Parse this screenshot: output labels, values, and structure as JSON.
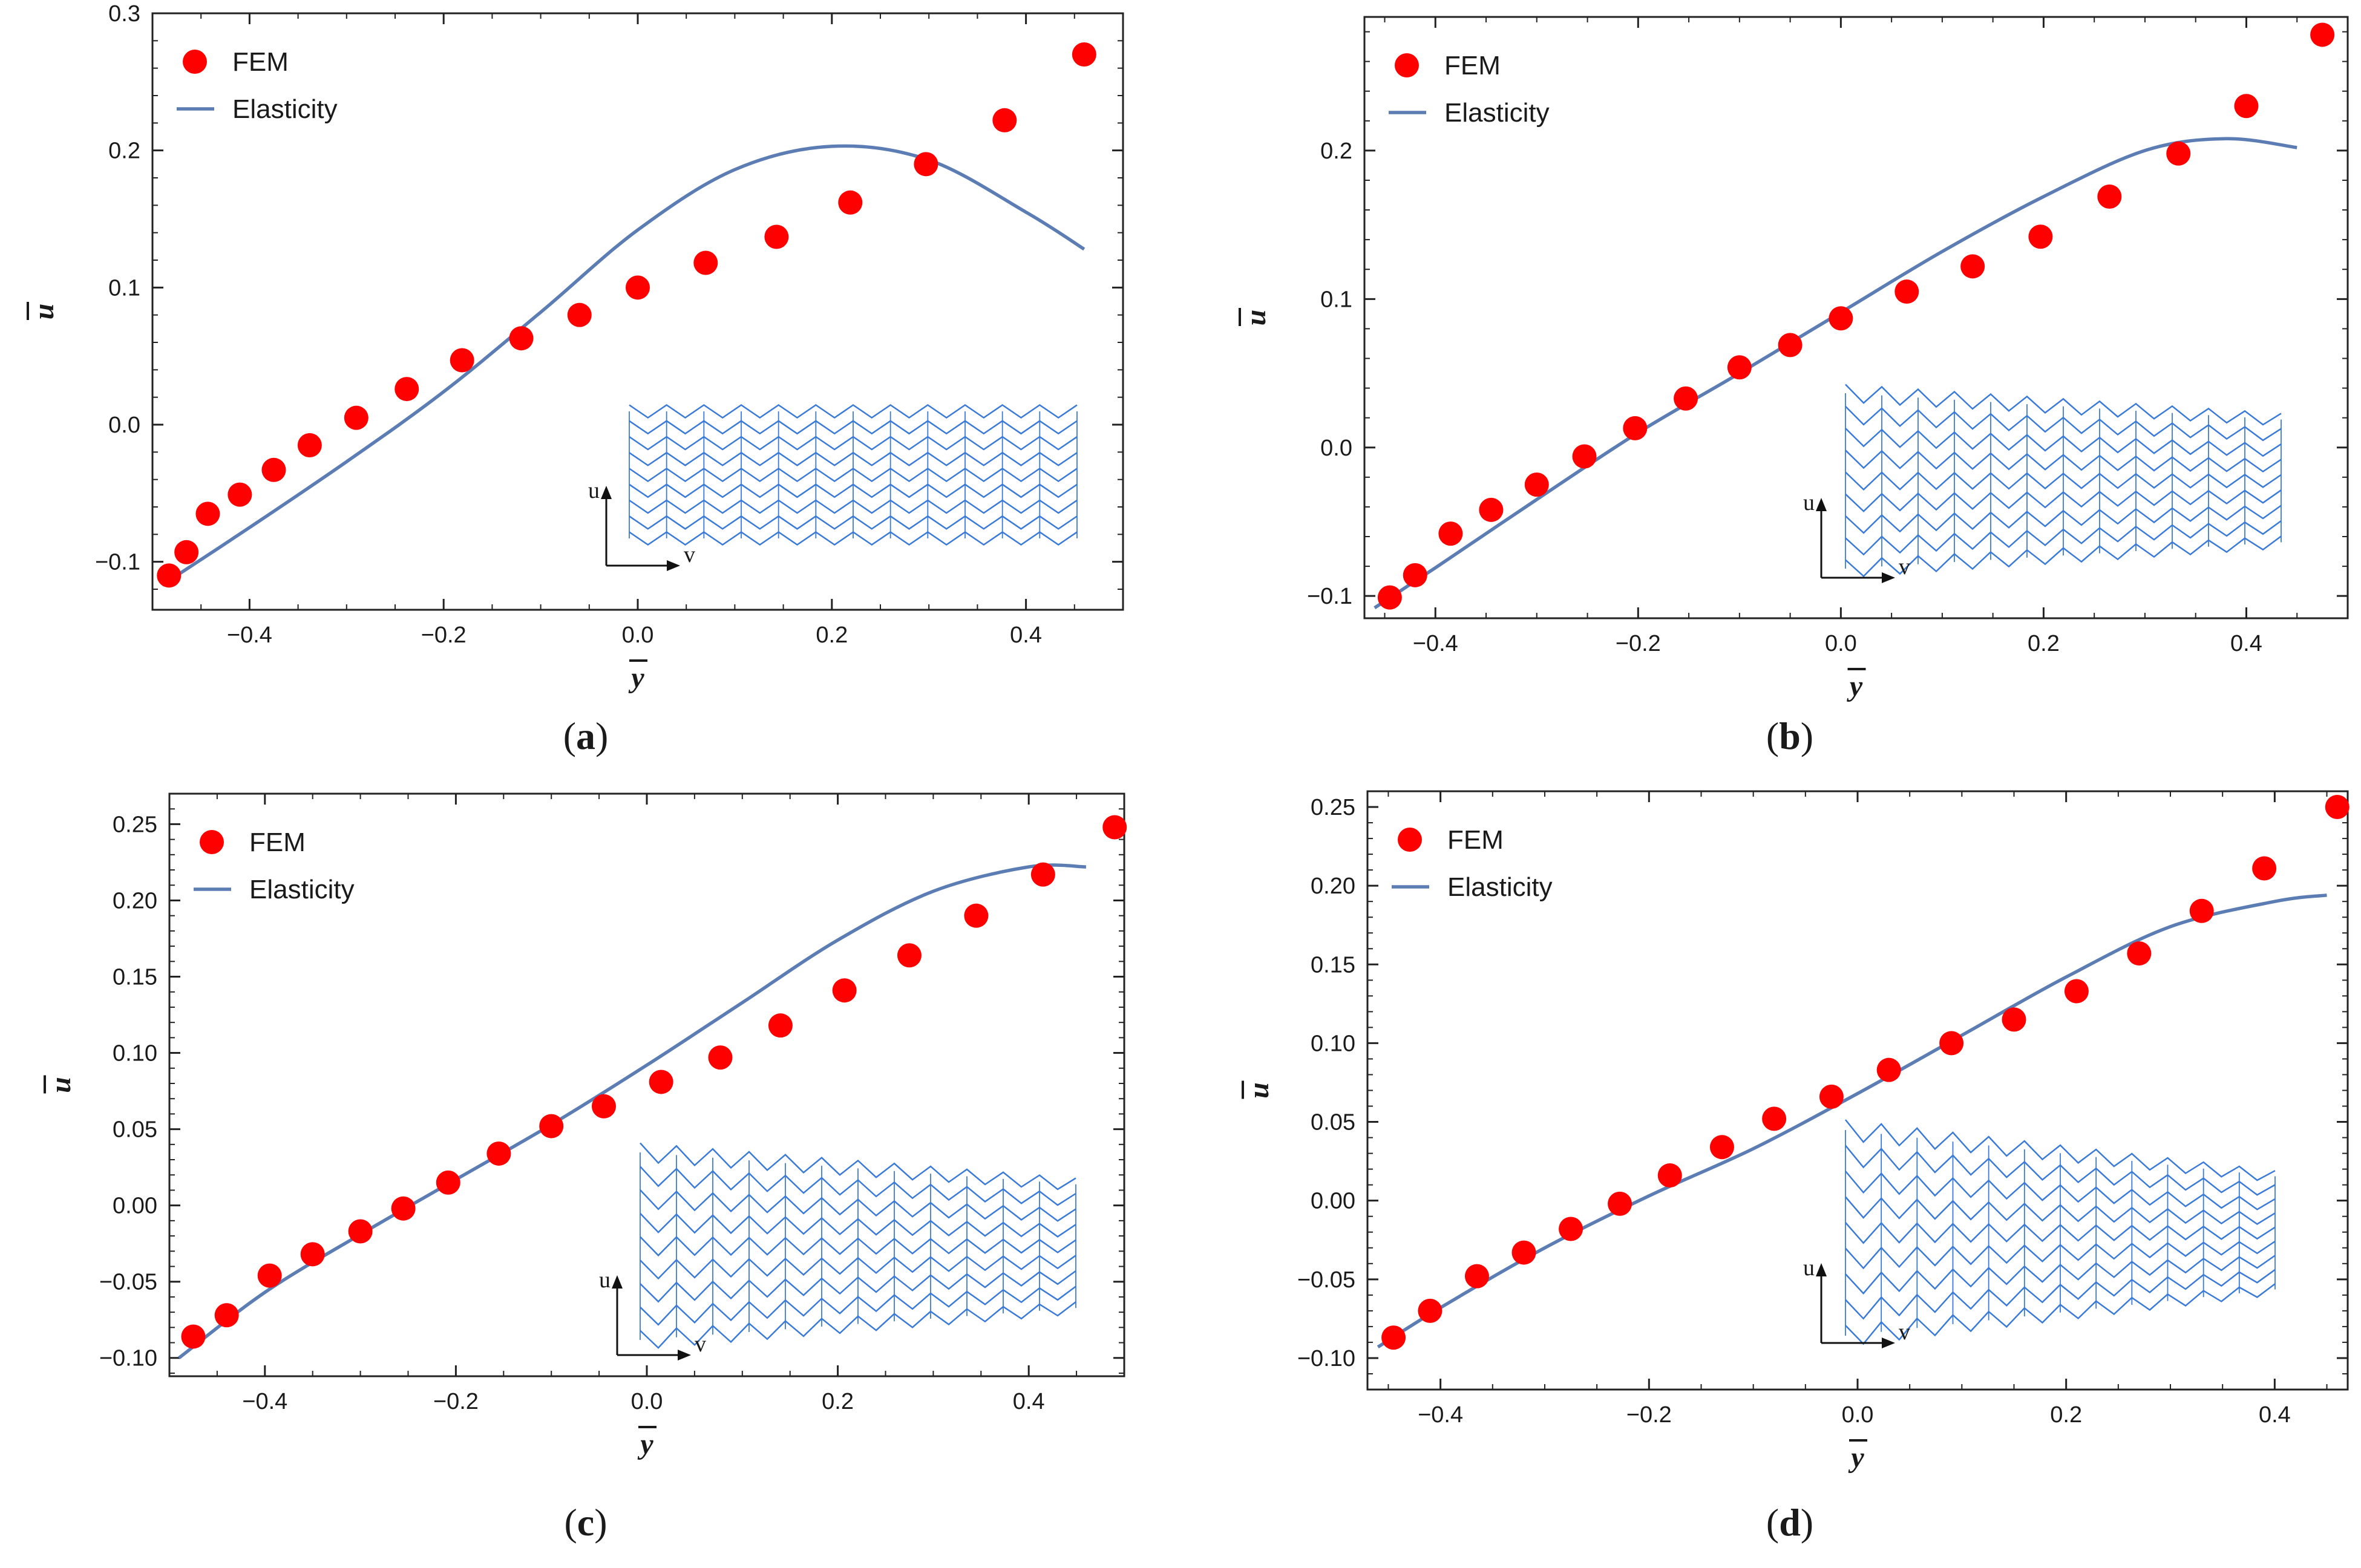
{
  "chart_data": [
    {
      "type": "scatter+line",
      "caption": "(a)",
      "xlabel": "y",
      "ylabel": "u",
      "xlim": [
        -0.5,
        0.5
      ],
      "ylim": [
        -0.135,
        0.3
      ],
      "xticks": [
        -0.4,
        -0.2,
        0.0,
        0.2,
        0.4
      ],
      "xtick_labels": [
        "−0.4",
        "−0.2",
        "0.0",
        "0.2",
        "0.4"
      ],
      "yticks": [
        -0.1,
        0.0,
        0.1,
        0.2,
        0.3
      ],
      "ytick_labels": [
        "−0.1",
        "0.0",
        "0.1",
        "0.2",
        "0.3"
      ],
      "legend": [
        "FEM",
        "Elasticity"
      ],
      "series": [
        {
          "name": "FEM",
          "kind": "scatter",
          "color": "#ff0000",
          "x": [
            -0.483,
            -0.465,
            -0.443,
            -0.41,
            -0.375,
            -0.338,
            -0.29,
            -0.238,
            -0.181,
            -0.12,
            -0.06,
            0.0,
            0.07,
            0.143,
            0.219,
            0.297,
            0.378,
            0.46
          ],
          "y": [
            -0.11,
            -0.093,
            -0.065,
            -0.051,
            -0.033,
            -0.015,
            0.005,
            0.026,
            0.047,
            0.063,
            0.08,
            0.1,
            0.118,
            0.137,
            0.162,
            0.19,
            0.222,
            0.27
          ]
        },
        {
          "name": "Elasticity",
          "kind": "line",
          "color": "#5b7db4",
          "x": [
            -0.49,
            -0.4,
            -0.3,
            -0.2,
            -0.1,
            0.0,
            0.1,
            0.2,
            0.3,
            0.4,
            0.46
          ],
          "y": [
            -0.117,
            -0.075,
            -0.027,
            0.024,
            0.082,
            0.142,
            0.186,
            0.203,
            0.193,
            0.155,
            0.128
          ]
        }
      ],
      "inset": {
        "axis_labels": [
          "u",
          "v"
        ]
      }
    },
    {
      "type": "scatter+line",
      "caption": "(b)",
      "xlabel": "y",
      "ylabel": "u",
      "xlim": [
        -0.47,
        0.5
      ],
      "ylim": [
        -0.115,
        0.29
      ],
      "xticks": [
        -0.4,
        -0.2,
        0.0,
        0.2,
        0.4
      ],
      "xtick_labels": [
        "−0.4",
        "−0.2",
        "0.0",
        "0.2",
        "0.4"
      ],
      "yticks": [
        -0.1,
        0.0,
        0.1,
        0.2
      ],
      "ytick_labels": [
        "−0.1",
        "0.0",
        "0.1",
        "0.2"
      ],
      "legend": [
        "FEM",
        "Elasticity"
      ],
      "series": [
        {
          "name": "FEM",
          "kind": "scatter",
          "color": "#ff0000",
          "x": [
            -0.445,
            -0.42,
            -0.385,
            -0.345,
            -0.3,
            -0.253,
            -0.203,
            -0.153,
            -0.1,
            -0.05,
            0.0,
            0.065,
            0.13,
            0.197,
            0.265,
            0.333,
            0.4,
            0.475
          ],
          "y": [
            -0.101,
            -0.086,
            -0.058,
            -0.042,
            -0.025,
            -0.006,
            0.013,
            0.033,
            0.054,
            0.069,
            0.087,
            0.105,
            0.122,
            0.142,
            0.169,
            0.198,
            0.23,
            0.278
          ]
        },
        {
          "name": "Elasticity",
          "kind": "line",
          "color": "#5b7db4",
          "x": [
            -0.46,
            -0.4,
            -0.3,
            -0.2,
            -0.1,
            0.0,
            0.1,
            0.2,
            0.3,
            0.38,
            0.45
          ],
          "y": [
            -0.108,
            -0.081,
            -0.035,
            0.01,
            0.05,
            0.091,
            0.132,
            0.169,
            0.2,
            0.208,
            0.202
          ]
        }
      ],
      "inset": {
        "axis_labels": [
          "u",
          "v"
        ]
      }
    },
    {
      "type": "scatter+line",
      "caption": "(c)",
      "xlabel": "y",
      "ylabel": "u",
      "xlim": [
        -0.5,
        0.5
      ],
      "ylim": [
        -0.112,
        0.27
      ],
      "xticks": [
        -0.4,
        -0.2,
        0.0,
        0.2,
        0.4
      ],
      "xtick_labels": [
        "−0.4",
        "−0.2",
        "0.0",
        "0.2",
        "0.4"
      ],
      "yticks": [
        -0.1,
        -0.05,
        0.0,
        0.05,
        0.1,
        0.15,
        0.2,
        0.25
      ],
      "ytick_labels": [
        "−0.10",
        "−0.05",
        "0.00",
        "0.05",
        "0.10",
        "0.15",
        "0.20",
        "0.25"
      ],
      "legend": [
        "FEM",
        "Elasticity"
      ],
      "series": [
        {
          "name": "FEM",
          "kind": "scatter",
          "color": "#ff0000",
          "x": [
            -0.475,
            -0.44,
            -0.395,
            -0.35,
            -0.3,
            -0.255,
            -0.208,
            -0.155,
            -0.1,
            -0.045,
            0.015,
            0.077,
            0.14,
            0.207,
            0.275,
            0.345,
            0.415,
            0.49
          ],
          "y": [
            -0.086,
            -0.072,
            -0.046,
            -0.032,
            -0.017,
            -0.002,
            0.015,
            0.034,
            0.052,
            0.065,
            0.081,
            0.097,
            0.118,
            0.141,
            0.164,
            0.19,
            0.217,
            0.248
          ]
        },
        {
          "name": "Elasticity",
          "kind": "line",
          "color": "#5b7db4",
          "x": [
            -0.49,
            -0.4,
            -0.3,
            -0.2,
            -0.1,
            0.0,
            0.1,
            0.2,
            0.3,
            0.4,
            0.46
          ],
          "y": [
            -0.1,
            -0.057,
            -0.019,
            0.017,
            0.053,
            0.092,
            0.133,
            0.174,
            0.206,
            0.222,
            0.222
          ]
        }
      ],
      "inset": {
        "axis_labels": [
          "u",
          "v"
        ]
      }
    },
    {
      "type": "scatter+line",
      "caption": "(d)",
      "xlabel": "y",
      "ylabel": "u",
      "xlim": [
        -0.47,
        0.47
      ],
      "ylim": [
        -0.12,
        0.26
      ],
      "xticks": [
        -0.4,
        -0.2,
        0.0,
        0.2,
        0.4
      ],
      "xtick_labels": [
        "−0.4",
        "−0.2",
        "0.0",
        "0.2",
        "0.4"
      ],
      "yticks": [
        -0.1,
        -0.05,
        0.0,
        0.05,
        0.1,
        0.15,
        0.2,
        0.25
      ],
      "ytick_labels": [
        "−0.10",
        "−0.05",
        "0.00",
        "0.05",
        "0.10",
        "0.15",
        "0.20",
        "0.25"
      ],
      "legend": [
        "FEM",
        "Elasticity"
      ],
      "series": [
        {
          "name": "FEM",
          "kind": "scatter",
          "color": "#ff0000",
          "x": [
            -0.445,
            -0.41,
            -0.365,
            -0.32,
            -0.275,
            -0.228,
            -0.18,
            -0.13,
            -0.08,
            -0.025,
            0.03,
            0.09,
            0.15,
            0.21,
            0.27,
            0.33,
            0.39,
            0.46
          ],
          "y": [
            -0.087,
            -0.07,
            -0.048,
            -0.033,
            -0.018,
            -0.002,
            0.016,
            0.034,
            0.052,
            0.066,
            0.083,
            0.1,
            0.115,
            0.133,
            0.157,
            0.184,
            0.211,
            0.25
          ]
        },
        {
          "name": "Elasticity",
          "kind": "line",
          "color": "#5b7db4",
          "x": [
            -0.46,
            -0.4,
            -0.3,
            -0.2,
            -0.1,
            0.0,
            0.1,
            0.2,
            0.3,
            0.4,
            0.45
          ],
          "y": [
            -0.093,
            -0.068,
            -0.03,
            0.003,
            0.033,
            0.068,
            0.105,
            0.142,
            0.174,
            0.19,
            0.194
          ]
        }
      ],
      "inset": {
        "axis_labels": [
          "u",
          "v"
        ]
      }
    }
  ]
}
